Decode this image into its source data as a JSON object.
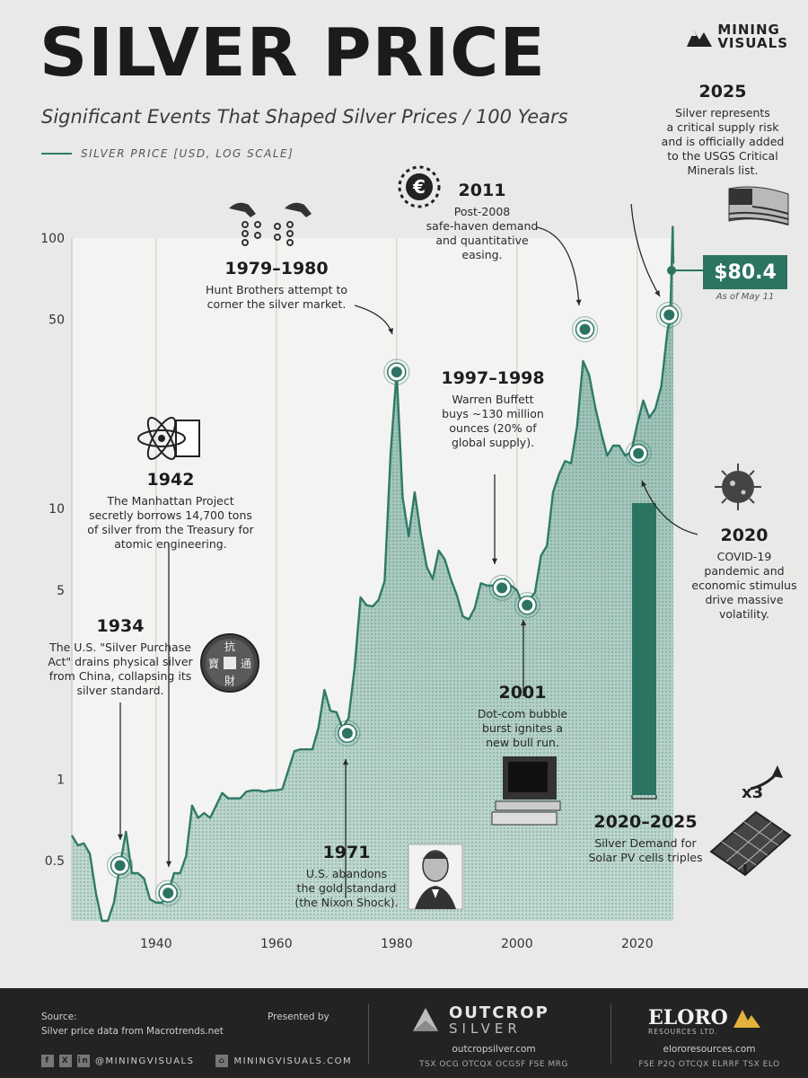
{
  "header": {
    "title": "SILVER PRICE",
    "subtitle": "Significant Events That Shaped Silver Prices / 100 Years",
    "legend_label": "SILVER PRICE [USD, LOG SCALE]",
    "brand_line1": "MINING",
    "brand_line2": "VISUALS"
  },
  "colors": {
    "series": "#2f7a66",
    "accent": "#2b7461",
    "background": "#e9e9e7",
    "footer": "#232323"
  },
  "chart_data": {
    "type": "line",
    "y_scale": "log",
    "xlim": [
      1926,
      2026
    ],
    "ylim": [
      0.3,
      100
    ],
    "x_ticks": [
      "1940",
      "1960",
      "1980",
      "2000",
      "2020"
    ],
    "y_ticks": [
      "0.5",
      "1",
      "5",
      "10",
      "50",
      "100"
    ],
    "grid": "vertical",
    "series": [
      {
        "x": [
          1926,
          1927,
          1928,
          1929,
          1930,
          1931,
          1932,
          1933,
          1934,
          1935,
          1936,
          1937,
          1938,
          1939,
          1940,
          1941,
          1942,
          1943,
          1944,
          1945,
          1946,
          1947,
          1948,
          1949,
          1950,
          1951,
          1952,
          1953,
          1954,
          1955,
          1956,
          1957,
          1958,
          1959,
          1960,
          1961,
          1962,
          1963,
          1964,
          1965,
          1966,
          1967,
          1968,
          1969,
          1970,
          1971,
          1972,
          1973,
          1974,
          1975,
          1976,
          1977,
          1978,
          1979,
          1980,
          1981,
          1982,
          1983,
          1984,
          1985,
          1986,
          1987,
          1988,
          1989,
          1990,
          1991,
          1992,
          1993,
          1994,
          1995,
          1996,
          1997,
          1998,
          1999,
          2000,
          2001,
          2002,
          2003,
          2004,
          2005,
          2006,
          2007,
          2008,
          2009,
          2010,
          2011,
          2012,
          2013,
          2014,
          2015,
          2016,
          2017,
          2018,
          2019,
          2020,
          2021,
          2022,
          2023,
          2024,
          2025,
          2025.5,
          2025.9,
          2026
        ],
        "values": [
          0.62,
          0.57,
          0.58,
          0.53,
          0.38,
          0.29,
          0.28,
          0.35,
          0.48,
          0.64,
          0.45,
          0.45,
          0.43,
          0.36,
          0.35,
          0.35,
          0.38,
          0.45,
          0.45,
          0.52,
          0.8,
          0.72,
          0.75,
          0.72,
          0.8,
          0.89,
          0.85,
          0.85,
          0.85,
          0.9,
          0.91,
          0.91,
          0.9,
          0.91,
          0.91,
          0.92,
          1.08,
          1.27,
          1.29,
          1.29,
          1.29,
          1.55,
          2.14,
          1.79,
          1.77,
          1.55,
          1.68,
          2.56,
          4.7,
          4.4,
          4.35,
          4.6,
          5.4,
          16,
          32,
          11,
          7.9,
          11.5,
          8.1,
          6.1,
          5.5,
          7.0,
          6.5,
          5.5,
          4.8,
          4.0,
          3.9,
          4.3,
          5.3,
          5.2,
          5.2,
          4.9,
          5.5,
          5.2,
          5.0,
          4.4,
          4.6,
          4.9,
          6.7,
          7.3,
          11.5,
          13.4,
          15.0,
          14.7,
          20.2,
          35.1,
          31.2,
          23.8,
          19.1,
          15.7,
          17.1,
          17.1,
          15.7,
          16.2,
          20.5,
          25.1,
          21.7,
          23.4,
          28.3,
          45,
          52,
          110,
          80.4
        ]
      }
    ],
    "callout_value": "$80.4",
    "callout_note": "As of May 11",
    "events": [
      {
        "year": "1934",
        "lines": [
          "The U.S. \"Silver Purchase",
          "Act\" drains physical silver",
          "from China, collapsing its",
          "silver standard."
        ]
      },
      {
        "year": "1942",
        "lines": [
          "The Manhattan Project",
          "secretly borrows 14,700 tons",
          "of silver from the Treasury for",
          "atomic engineering."
        ]
      },
      {
        "year": "1971",
        "lines": [
          "U.S. abandons",
          "the gold standard",
          "(the Nixon Shock)."
        ]
      },
      {
        "year": "1979–1980",
        "lines": [
          "Hunt Brothers attempt to",
          "corner the silver market."
        ]
      },
      {
        "year": "1997–1998",
        "lines": [
          "Warren Buffett",
          "buys ~130 million",
          "ounces (20% of",
          "global supply)."
        ]
      },
      {
        "year": "2001",
        "lines": [
          "Dot-com bubble",
          "burst ignites a",
          "new bull run."
        ]
      },
      {
        "year": "2011",
        "lines": [
          "Post-2008",
          "safe-haven demand",
          "and quantitative",
          "easing."
        ]
      },
      {
        "year": "2020",
        "lines": [
          "COVID-19",
          "pandemic and",
          "economic stimulus",
          "drive massive",
          "volatility."
        ]
      },
      {
        "year": "2020–2025",
        "lines": [
          "Silver Demand for",
          "Solar PV cells triples"
        ]
      },
      {
        "year": "2025",
        "lines": [
          "Silver represents",
          "a critical supply risk",
          "and is officially added",
          "to the USGS Critical",
          "Minerals list."
        ]
      }
    ],
    "solar_multiplier": "x3"
  },
  "footer": {
    "source_label": "Source:",
    "source_text": "Silver price data from Macrotrends.net",
    "presented_by": "Presented by",
    "social_handle1": "@MININGVISUALS",
    "social_handle2": "MININGVISUALS.COM",
    "sponsor1_line1": "OUTCROP",
    "sponsor1_line2": "SILVER",
    "sponsor1_site": "outcropsilver.com",
    "sponsor1_tickers": "TSX OCG   OTCQX OCGSF   FSE MRG",
    "sponsor2_line1": "ELORO",
    "sponsor2_line2": "RESOURCES LTD.",
    "sponsor2_site": "elororesources.com",
    "sponsor2_tickers": "FSE P2Q   OTCQX ELRRF   TSX ELO"
  }
}
